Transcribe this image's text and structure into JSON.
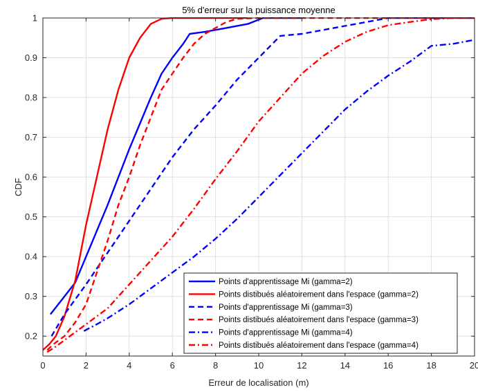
{
  "chart_data": {
    "type": "line",
    "title": "5% d'erreur sur la puissance moyenne",
    "xlabel": "Erreur de localisation (m)",
    "ylabel": "CDF",
    "xlim": [
      0,
      20
    ],
    "ylim": [
      0.15,
      1
    ],
    "xticks": [
      0,
      2,
      4,
      6,
      8,
      10,
      12,
      14,
      16,
      18,
      20
    ],
    "yticks": [
      0.2,
      0.3,
      0.4,
      0.5,
      0.6,
      0.7,
      0.8,
      0.9,
      1
    ],
    "ytick_labels": [
      "0.2",
      "0.3",
      "0.4",
      "0.5",
      "0.6",
      "0.7",
      "0.8",
      "0.9",
      "1"
    ],
    "grid": true,
    "legend_position": "bottom-right",
    "series": [
      {
        "name": "Points d'apprentissage Mi (gamma=2)",
        "color": "#0000ff",
        "dash": "solid",
        "points": [
          [
            0.35,
            0.255
          ],
          [
            1,
            0.3
          ],
          [
            1.5,
            0.335
          ],
          [
            2,
            0.4
          ],
          [
            2.5,
            0.465
          ],
          [
            3,
            0.53
          ],
          [
            3.5,
            0.6
          ],
          [
            4,
            0.67
          ],
          [
            4.5,
            0.735
          ],
          [
            5,
            0.8
          ],
          [
            5.5,
            0.86
          ],
          [
            6,
            0.9
          ],
          [
            6.5,
            0.935
          ],
          [
            6.8,
            0.96
          ],
          [
            7.5,
            0.965
          ],
          [
            8.5,
            0.975
          ],
          [
            9.5,
            0.985
          ],
          [
            10.2,
            1
          ],
          [
            11,
            1
          ],
          [
            12,
            1
          ]
        ]
      },
      {
        "name": "Points distibués aléatoirement dans l'espace (gamma=2)",
        "color": "#ff0000",
        "dash": "solid",
        "points": [
          [
            0,
            0.165
          ],
          [
            0.3,
            0.18
          ],
          [
            0.6,
            0.2
          ],
          [
            1,
            0.25
          ],
          [
            1.5,
            0.34
          ],
          [
            2,
            0.48
          ],
          [
            2.5,
            0.6
          ],
          [
            3,
            0.72
          ],
          [
            3.5,
            0.82
          ],
          [
            4,
            0.9
          ],
          [
            4.5,
            0.95
          ],
          [
            5,
            0.985
          ],
          [
            5.5,
            0.998
          ],
          [
            6,
            1
          ],
          [
            7,
            1
          ],
          [
            8,
            1
          ],
          [
            9,
            1
          ],
          [
            9.5,
            1
          ]
        ]
      },
      {
        "name": "Points d'apprentissage Mi (gamma=3)",
        "color": "#0000ff",
        "dash": "dash",
        "points": [
          [
            0.4,
            0.2
          ],
          [
            1,
            0.255
          ],
          [
            2,
            0.33
          ],
          [
            3,
            0.41
          ],
          [
            4,
            0.49
          ],
          [
            5,
            0.57
          ],
          [
            6,
            0.65
          ],
          [
            7,
            0.72
          ],
          [
            8,
            0.78
          ],
          [
            9,
            0.845
          ],
          [
            10,
            0.9
          ],
          [
            11,
            0.955
          ],
          [
            12,
            0.96
          ],
          [
            13,
            0.97
          ],
          [
            14,
            0.98
          ],
          [
            15,
            0.99
          ],
          [
            16,
            1
          ],
          [
            17,
            1
          ],
          [
            18,
            1
          ],
          [
            20,
            1
          ]
        ]
      },
      {
        "name": "Points distibués aléatoirement dans l'espace (gamma=3)",
        "color": "#ff0000",
        "dash": "dash",
        "points": [
          [
            0.2,
            0.165
          ],
          [
            0.5,
            0.18
          ],
          [
            1,
            0.2
          ],
          [
            1.5,
            0.235
          ],
          [
            2,
            0.28
          ],
          [
            2.5,
            0.36
          ],
          [
            3,
            0.44
          ],
          [
            3.5,
            0.53
          ],
          [
            4,
            0.6
          ],
          [
            4.5,
            0.68
          ],
          [
            5,
            0.75
          ],
          [
            5.5,
            0.82
          ],
          [
            6,
            0.86
          ],
          [
            6.5,
            0.9
          ],
          [
            7,
            0.935
          ],
          [
            7.5,
            0.96
          ],
          [
            8,
            0.975
          ],
          [
            8.5,
            0.99
          ],
          [
            9,
            0.998
          ],
          [
            10,
            1
          ],
          [
            12,
            1
          ],
          [
            14,
            1
          ],
          [
            16,
            1
          ],
          [
            18,
            1
          ],
          [
            20,
            1
          ]
        ]
      },
      {
        "name": "Points d'apprentissage Mi (gamma=4)",
        "color": "#0000ff",
        "dash": "dashdot",
        "points": [
          [
            1.9,
            0.213
          ],
          [
            2.5,
            0.23
          ],
          [
            3,
            0.245
          ],
          [
            4,
            0.28
          ],
          [
            5,
            0.32
          ],
          [
            6,
            0.36
          ],
          [
            7,
            0.4
          ],
          [
            8,
            0.445
          ],
          [
            9,
            0.495
          ],
          [
            10,
            0.55
          ],
          [
            11,
            0.605
          ],
          [
            12,
            0.66
          ],
          [
            13,
            0.715
          ],
          [
            14,
            0.77
          ],
          [
            15,
            0.815
          ],
          [
            16,
            0.855
          ],
          [
            17,
            0.89
          ],
          [
            18,
            0.93
          ],
          [
            19,
            0.935
          ],
          [
            20,
            0.945
          ]
        ]
      },
      {
        "name": "Points distibués aléatoirement dans l'espace (gamma=4)",
        "color": "#ff0000",
        "dash": "dashdot",
        "points": [
          [
            0.2,
            0.16
          ],
          [
            0.5,
            0.17
          ],
          [
            1,
            0.19
          ],
          [
            2,
            0.23
          ],
          [
            3,
            0.27
          ],
          [
            4,
            0.33
          ],
          [
            5,
            0.39
          ],
          [
            6,
            0.45
          ],
          [
            7,
            0.52
          ],
          [
            8,
            0.595
          ],
          [
            9,
            0.665
          ],
          [
            10,
            0.74
          ],
          [
            11,
            0.8
          ],
          [
            12,
            0.86
          ],
          [
            13,
            0.905
          ],
          [
            14,
            0.94
          ],
          [
            15,
            0.965
          ],
          [
            16,
            0.982
          ],
          [
            17,
            0.99
          ],
          [
            18,
            0.997
          ],
          [
            19,
            1
          ],
          [
            20,
            1
          ]
        ]
      }
    ]
  }
}
